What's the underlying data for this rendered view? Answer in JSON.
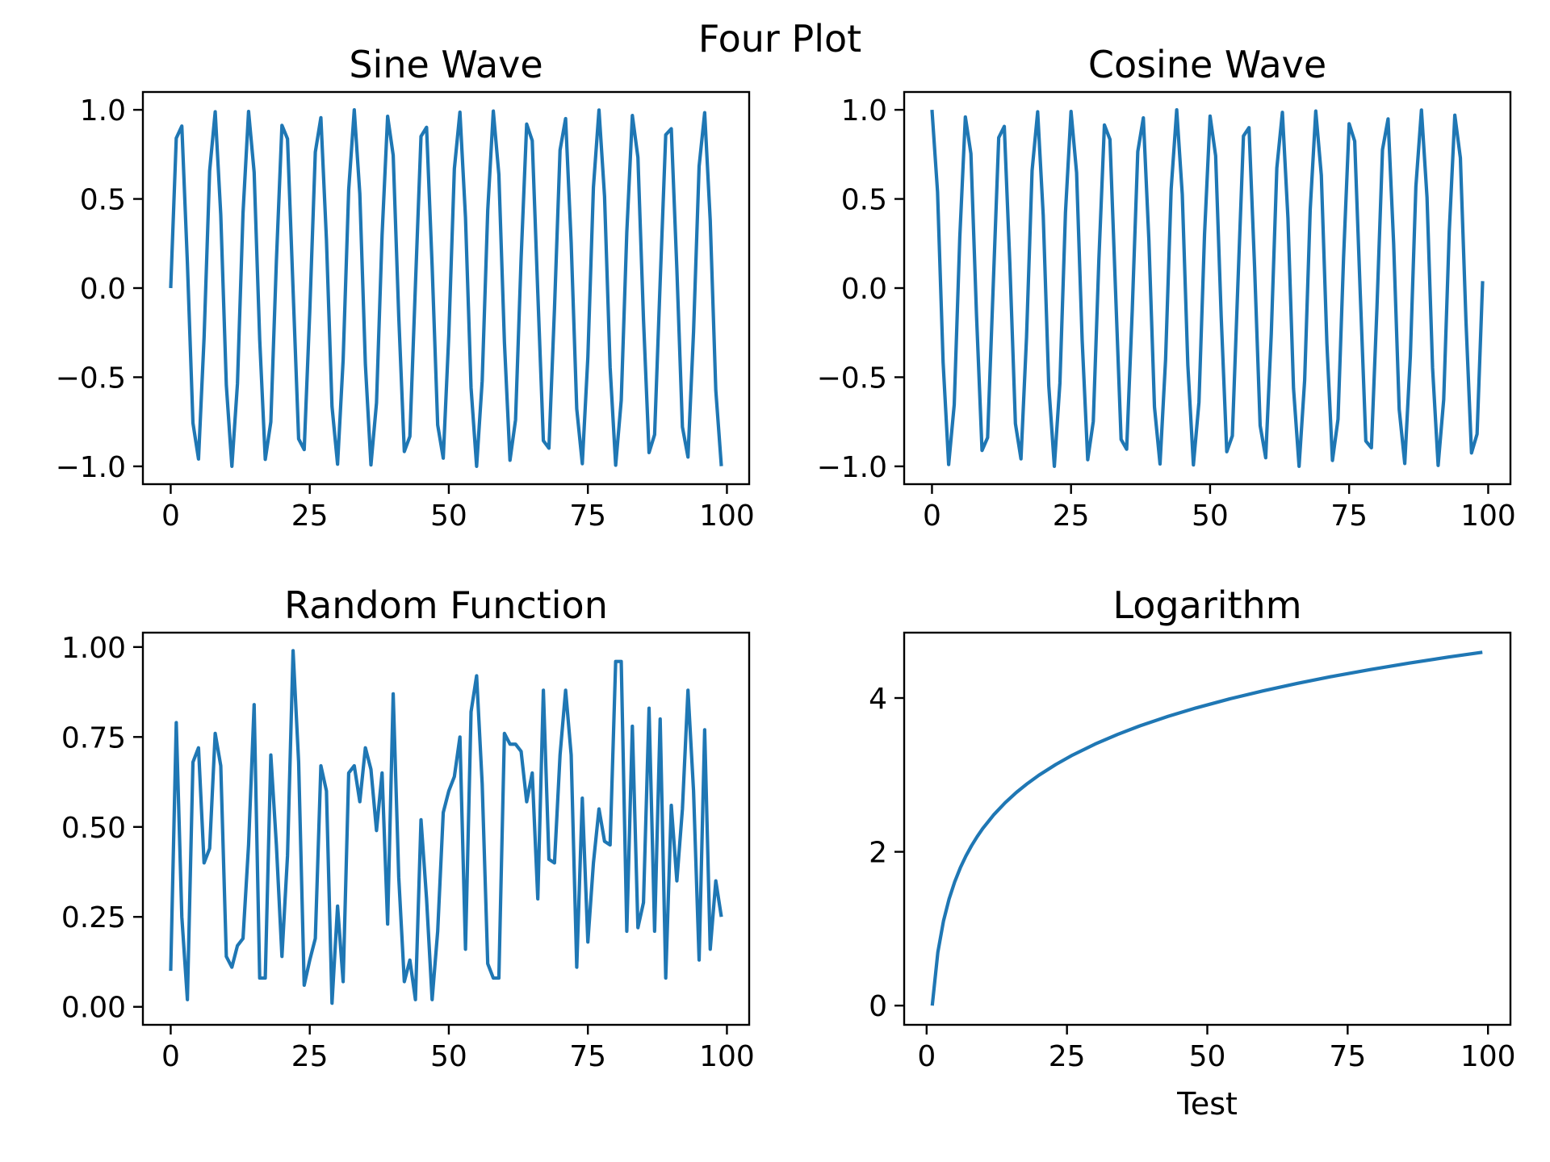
{
  "figure": {
    "suptitle": "Four Plot",
    "line_color": "#1f77b4"
  },
  "chart_data": [
    {
      "type": "line",
      "title": "Sine Wave",
      "xlabel": "",
      "ylabel": "",
      "xlim": [
        -5,
        104
      ],
      "ylim": [
        -1.1,
        1.1
      ],
      "xticks": [
        0,
        25,
        50,
        75,
        100
      ],
      "xtick_labels": [
        "0",
        "25",
        "50",
        "75",
        "100"
      ],
      "yticks": [
        -1.0,
        -0.5,
        0.0,
        0.5,
        1.0
      ],
      "ytick_labels": [
        "−1.0",
        "−0.5",
        "0.0",
        "0.5",
        "1.0"
      ],
      "grid": false,
      "series": [
        {
          "x": [
            0,
            1,
            2,
            3,
            4,
            5,
            6,
            7,
            8,
            9,
            10,
            11,
            12,
            13,
            14,
            15,
            16,
            17,
            18,
            19,
            20,
            21,
            22,
            23,
            24,
            25,
            26,
            27,
            28,
            29,
            30,
            31,
            32,
            33,
            34,
            35,
            36,
            37,
            38,
            39,
            40,
            41,
            42,
            43,
            44,
            45,
            46,
            47,
            48,
            49,
            50,
            51,
            52,
            53,
            54,
            55,
            56,
            57,
            58,
            59,
            60,
            61,
            62,
            63,
            64,
            65,
            66,
            67,
            68,
            69,
            70,
            71,
            72,
            73,
            74,
            75,
            76,
            77,
            78,
            79,
            80,
            81,
            82,
            83,
            84,
            85,
            86,
            87,
            88,
            89,
            90,
            91,
            92,
            93,
            94,
            95,
            96,
            97,
            98,
            99
          ],
          "y": [
            0.0,
            0.841,
            0.909,
            0.141,
            -0.757,
            -0.959,
            -0.279,
            0.657,
            0.989,
            0.412,
            -0.544,
            -1.0,
            -0.537,
            0.42,
            0.991,
            0.65,
            -0.288,
            -0.961,
            -0.751,
            0.15,
            0.913,
            0.837,
            -0.009,
            -0.846,
            -0.906,
            -0.132,
            0.763,
            0.956,
            0.271,
            -0.664,
            -0.988,
            -0.404,
            0.551,
            1.0,
            0.529,
            -0.428,
            -0.992,
            -0.644,
            0.296,
            0.964,
            0.745,
            -0.159,
            -0.917,
            -0.832,
            0.018,
            0.851,
            0.902,
            0.124,
            -0.768,
            -0.954,
            -0.262,
            0.67,
            0.987,
            0.396,
            -0.559,
            -1.0,
            -0.521,
            0.436,
            0.993,
            0.637,
            -0.305,
            -0.966,
            -0.739,
            0.167,
            0.92,
            0.827,
            -0.027,
            -0.856,
            -0.898,
            -0.115,
            0.774,
            0.951,
            0.254,
            -0.677,
            -0.985,
            -0.388,
            0.566,
            0.999,
            0.514,
            -0.444,
            -0.994,
            -0.63,
            0.313,
            0.968,
            0.733,
            -0.176,
            -0.923,
            -0.822,
            0.035,
            0.86,
            0.894,
            0.107,
            -0.779,
            -0.948,
            -0.245,
            0.683,
            0.984,
            0.38,
            -0.573,
            -0.999
          ]
        }
      ]
    },
    {
      "type": "line",
      "title": "Cosine Wave",
      "xlabel": "",
      "ylabel": "",
      "xlim": [
        -5,
        104
      ],
      "ylim": [
        -1.1,
        1.1
      ],
      "xticks": [
        0,
        25,
        50,
        75,
        100
      ],
      "xtick_labels": [
        "0",
        "25",
        "50",
        "75",
        "100"
      ],
      "yticks": [
        -1.0,
        -0.5,
        0.0,
        0.5,
        1.0
      ],
      "ytick_labels": [
        "−1.0",
        "−0.5",
        "0.0",
        "0.5",
        "1.0"
      ],
      "grid": false,
      "series": [
        {
          "x": [
            0,
            1,
            2,
            3,
            4,
            5,
            6,
            7,
            8,
            9,
            10,
            11,
            12,
            13,
            14,
            15,
            16,
            17,
            18,
            19,
            20,
            21,
            22,
            23,
            24,
            25,
            26,
            27,
            28,
            29,
            30,
            31,
            32,
            33,
            34,
            35,
            36,
            37,
            38,
            39,
            40,
            41,
            42,
            43,
            44,
            45,
            46,
            47,
            48,
            49,
            50,
            51,
            52,
            53,
            54,
            55,
            56,
            57,
            58,
            59,
            60,
            61,
            62,
            63,
            64,
            65,
            66,
            67,
            68,
            69,
            70,
            71,
            72,
            73,
            74,
            75,
            76,
            77,
            78,
            79,
            80,
            81,
            82,
            83,
            84,
            85,
            86,
            87,
            88,
            89,
            90,
            91,
            92,
            93,
            94,
            95,
            96,
            97,
            98,
            99
          ],
          "y": [
            1.0,
            0.54,
            -0.416,
            -0.99,
            -0.654,
            0.284,
            0.96,
            0.754,
            -0.146,
            -0.911,
            -0.839,
            0.004,
            0.844,
            0.907,
            0.137,
            -0.76,
            -0.958,
            -0.275,
            0.66,
            0.989,
            0.408,
            -0.548,
            -1.0,
            -0.533,
            0.424,
            0.991,
            0.647,
            -0.292,
            -0.963,
            -0.748,
            0.154,
            0.915,
            0.834,
            -0.013,
            -0.849,
            -0.904,
            -0.128,
            0.766,
            0.955,
            0.267,
            -0.667,
            -0.987,
            -0.4,
            0.555,
            1.0,
            0.525,
            -0.432,
            -0.992,
            -0.64,
            0.301,
            0.965,
            0.742,
            -0.162,
            -0.918,
            -0.829,
            0.022,
            0.853,
            0.9,
            0.119,
            -0.771,
            -0.952,
            -0.258,
            0.674,
            0.986,
            0.392,
            -0.562,
            -1.0,
            -0.518,
            0.44,
            0.993,
            0.633,
            -0.309,
            -0.967,
            -0.736,
            0.172,
            0.922,
            0.824,
            -0.031,
            -0.858,
            -0.896,
            -0.11,
            0.777,
            0.949,
            0.25,
            -0.68,
            -0.984,
            -0.384,
            0.57,
            0.999,
            0.51,
            -0.448,
            -0.995,
            -0.626,
            0.318,
            0.97,
            0.73,
            -0.18,
            -0.925,
            -0.819,
            0.039
          ]
        }
      ]
    },
    {
      "type": "line",
      "title": "Random Function",
      "xlabel": "",
      "ylabel": "",
      "xlim": [
        -5,
        104
      ],
      "ylim": [
        -0.05,
        1.04
      ],
      "xticks": [
        0,
        25,
        50,
        75,
        100
      ],
      "xtick_labels": [
        "0",
        "25",
        "50",
        "75",
        "100"
      ],
      "yticks": [
        0.0,
        0.25,
        0.5,
        0.75,
        1.0
      ],
      "ytick_labels": [
        "0.00",
        "0.25",
        "0.50",
        "0.75",
        "1.00"
      ],
      "grid": false,
      "series": [
        {
          "x": [
            0,
            1,
            2,
            3,
            4,
            5,
            6,
            7,
            8,
            9,
            10,
            11,
            12,
            13,
            14,
            15,
            16,
            17,
            18,
            19,
            20,
            21,
            22,
            23,
            24,
            25,
            26,
            27,
            28,
            29,
            30,
            31,
            32,
            33,
            34,
            35,
            36,
            37,
            38,
            39,
            40,
            41,
            42,
            43,
            44,
            45,
            46,
            47,
            48,
            49,
            50,
            51,
            52,
            53,
            54,
            55,
            56,
            57,
            58,
            59,
            60,
            61,
            62,
            63,
            64,
            65,
            66,
            67,
            68,
            69,
            70,
            71,
            72,
            73,
            74,
            75,
            76,
            77,
            78,
            79,
            80,
            81,
            82,
            83,
            84,
            85,
            86,
            87,
            88,
            89,
            90,
            91,
            92,
            93,
            94,
            95,
            96,
            97,
            98,
            99
          ],
          "y": [
            0.1,
            0.79,
            0.25,
            0.02,
            0.68,
            0.72,
            0.4,
            0.44,
            0.76,
            0.67,
            0.14,
            0.11,
            0.17,
            0.19,
            0.45,
            0.84,
            0.08,
            0.08,
            0.7,
            0.45,
            0.14,
            0.42,
            0.99,
            0.68,
            0.06,
            0.13,
            0.19,
            0.67,
            0.6,
            0.01,
            0.28,
            0.07,
            0.65,
            0.67,
            0.57,
            0.72,
            0.66,
            0.49,
            0.65,
            0.23,
            0.87,
            0.36,
            0.07,
            0.13,
            0.02,
            0.52,
            0.3,
            0.02,
            0.21,
            0.54,
            0.6,
            0.64,
            0.75,
            0.16,
            0.82,
            0.92,
            0.62,
            0.12,
            0.08,
            0.08,
            0.76,
            0.73,
            0.73,
            0.71,
            0.57,
            0.65,
            0.3,
            0.88,
            0.41,
            0.4,
            0.7,
            0.88,
            0.7,
            0.11,
            0.58,
            0.18,
            0.4,
            0.55,
            0.46,
            0.45,
            0.96,
            0.96,
            0.21,
            0.78,
            0.22,
            0.29,
            0.83,
            0.21,
            0.8,
            0.08,
            0.56,
            0.35,
            0.55,
            0.88,
            0.6,
            0.13,
            0.77,
            0.16,
            0.35,
            0.25
          ]
        }
      ]
    },
    {
      "type": "line",
      "title": "Logarithm",
      "xlabel": "Test",
      "ylabel": "",
      "xlim": [
        -4,
        104
      ],
      "ylim": [
        -0.25,
        4.85
      ],
      "xticks": [
        0,
        25,
        50,
        75,
        100
      ],
      "xtick_labels": [
        "0",
        "25",
        "50",
        "75",
        "100"
      ],
      "yticks": [
        0,
        2,
        4
      ],
      "ytick_labels": [
        "0",
        "2",
        "4"
      ],
      "grid": false,
      "series": [
        {
          "x": [
            1,
            2,
            3,
            4,
            5,
            6,
            7,
            8,
            9,
            10,
            12,
            14,
            16,
            18,
            20,
            23,
            26,
            30,
            34,
            38,
            43,
            48,
            54,
            60,
            66,
            72,
            79,
            86,
            93,
            99
          ],
          "y": [
            0.0,
            0.693,
            1.099,
            1.386,
            1.609,
            1.792,
            1.946,
            2.079,
            2.197,
            2.303,
            2.485,
            2.639,
            2.773,
            2.89,
            2.996,
            3.135,
            3.258,
            3.401,
            3.526,
            3.638,
            3.761,
            3.871,
            3.989,
            4.094,
            4.19,
            4.277,
            4.369,
            4.454,
            4.533,
            4.595
          ]
        }
      ]
    }
  ]
}
